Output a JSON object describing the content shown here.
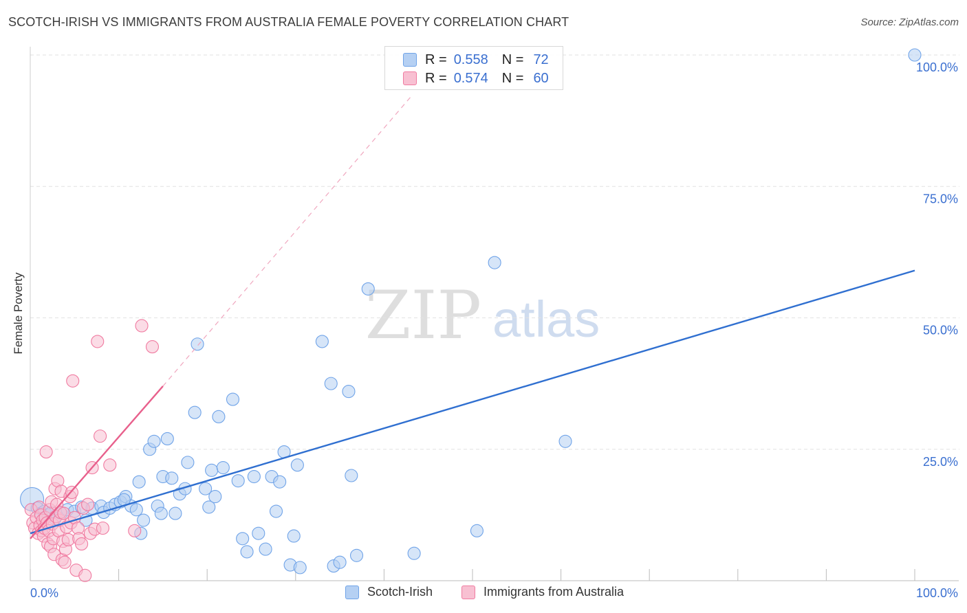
{
  "title": "SCOTCH-IRISH VS IMMIGRANTS FROM AUSTRALIA FEMALE POVERTY CORRELATION CHART",
  "source": "Source: ZipAtlas.com",
  "watermark": {
    "zip": "ZIP",
    "atlas": "atlas"
  },
  "legend": {
    "r_label": "R =",
    "n_label": "N =",
    "series": [
      {
        "name": "Scotch-Irish",
        "r": "0.558",
        "n": "72",
        "color": "#6fa3e8",
        "fill": "#b5d0f3"
      },
      {
        "name": "Immigrants from Australia",
        "r": "0.574",
        "n": "60",
        "color": "#f07aa0",
        "fill": "#f8c0d2"
      }
    ]
  },
  "chart_data": {
    "type": "scatter",
    "title": "SCOTCH-IRISH VS IMMIGRANTS FROM AUSTRALIA FEMALE POVERTY CORRELATION CHART",
    "xlabel": "",
    "ylabel": "Female Poverty",
    "xlim": [
      0,
      100
    ],
    "ylim": [
      0,
      100
    ],
    "x_tick_labels": [
      {
        "value": 0,
        "label": "0.0%"
      },
      {
        "value": 100,
        "label": "100.0%"
      }
    ],
    "y_tick_labels": [
      {
        "value": 25,
        "label": "25.0%"
      },
      {
        "value": 50,
        "label": "50.0%"
      },
      {
        "value": 75,
        "label": "75.0%"
      },
      {
        "value": 100,
        "label": "100.0%"
      }
    ],
    "grid": true,
    "series": [
      {
        "name": "Scotch-Irish",
        "color": "#6fa3e8",
        "line_color": "#2f6fd0",
        "trend": {
          "x": [
            0,
            100
          ],
          "y": [
            9.0,
            59.0
          ],
          "dashed_extension": false
        },
        "points": [
          [
            0.2,
            15.5
          ],
          [
            0.8,
            13.8
          ],
          [
            1.2,
            12.8
          ],
          [
            1.6,
            13.2
          ],
          [
            2.0,
            12.5
          ],
          [
            2.4,
            13.0
          ],
          [
            3.5,
            12.8
          ],
          [
            4.2,
            13.5
          ],
          [
            5.0,
            13.2
          ],
          [
            5.8,
            14.0
          ],
          [
            6.3,
            11.5
          ],
          [
            7.0,
            13.8
          ],
          [
            8.0,
            14.2
          ],
          [
            8.3,
            13.0
          ],
          [
            9.0,
            13.8
          ],
          [
            9.6,
            14.5
          ],
          [
            10.2,
            15.0
          ],
          [
            10.8,
            16.0
          ],
          [
            11.4,
            14.2
          ],
          [
            12.0,
            13.5
          ],
          [
            12.3,
            18.8
          ],
          [
            12.5,
            9.0
          ],
          [
            12.8,
            11.5
          ],
          [
            13.5,
            25.0
          ],
          [
            14.0,
            26.5
          ],
          [
            14.4,
            14.2
          ],
          [
            14.8,
            12.8
          ],
          [
            15.0,
            19.8
          ],
          [
            15.5,
            27.0
          ],
          [
            16.0,
            19.5
          ],
          [
            16.4,
            12.8
          ],
          [
            16.9,
            16.5
          ],
          [
            17.5,
            17.5
          ],
          [
            17.8,
            22.5
          ],
          [
            18.6,
            32.0
          ],
          [
            18.9,
            45.0
          ],
          [
            19.8,
            17.5
          ],
          [
            20.2,
            14.0
          ],
          [
            20.5,
            21.0
          ],
          [
            20.9,
            16.0
          ],
          [
            21.3,
            31.2
          ],
          [
            21.8,
            21.5
          ],
          [
            22.9,
            34.5
          ],
          [
            23.5,
            19.0
          ],
          [
            24.0,
            8.0
          ],
          [
            24.5,
            5.5
          ],
          [
            25.3,
            19.8
          ],
          [
            25.8,
            9.0
          ],
          [
            26.6,
            6.0
          ],
          [
            27.3,
            19.8
          ],
          [
            27.8,
            13.2
          ],
          [
            28.2,
            18.8
          ],
          [
            28.7,
            24.5
          ],
          [
            29.4,
            3.0
          ],
          [
            29.8,
            8.5
          ],
          [
            30.2,
            22.0
          ],
          [
            30.5,
            2.5
          ],
          [
            33.0,
            45.5
          ],
          [
            34.0,
            37.5
          ],
          [
            34.3,
            2.8
          ],
          [
            35.0,
            3.5
          ],
          [
            36.0,
            36.0
          ],
          [
            36.3,
            20.0
          ],
          [
            36.9,
            4.8
          ],
          [
            38.2,
            55.5
          ],
          [
            43.4,
            5.2
          ],
          [
            50.5,
            9.5
          ],
          [
            52.5,
            60.5
          ],
          [
            60.5,
            26.5
          ],
          [
            100,
            100
          ],
          [
            2.8,
            11.8
          ],
          [
            10.6,
            15.4
          ]
        ]
      },
      {
        "name": "Immigrants from Australia",
        "color": "#f07aa0",
        "line_color": "#e8608c",
        "trend": {
          "x": [
            0,
            15
          ],
          "y": [
            8.0,
            37.0
          ],
          "dashed_extension": true,
          "dashed_to": {
            "x": 43,
            "y": 92
          }
        },
        "points": [
          [
            0.1,
            13.5
          ],
          [
            0.3,
            11.0
          ],
          [
            0.5,
            10.0
          ],
          [
            0.7,
            12.0
          ],
          [
            0.9,
            9.0
          ],
          [
            1.0,
            14.0
          ],
          [
            1.1,
            10.5
          ],
          [
            1.2,
            12.5
          ],
          [
            1.3,
            9.5
          ],
          [
            1.4,
            11.5
          ],
          [
            1.5,
            8.5
          ],
          [
            1.6,
            10.0
          ],
          [
            1.7,
            12.0
          ],
          [
            1.8,
            24.5
          ],
          [
            1.9,
            11.0
          ],
          [
            2.0,
            7.0
          ],
          [
            2.1,
            9.5
          ],
          [
            2.2,
            13.5
          ],
          [
            2.3,
            6.5
          ],
          [
            2.4,
            15.0
          ],
          [
            2.5,
            10.8
          ],
          [
            2.6,
            8.0
          ],
          [
            2.7,
            5.0
          ],
          [
            2.8,
            17.5
          ],
          [
            2.9,
            12.2
          ],
          [
            3.0,
            14.5
          ],
          [
            3.1,
            19.0
          ],
          [
            3.2,
            9.5
          ],
          [
            3.3,
            11.5
          ],
          [
            3.4,
            13.0
          ],
          [
            3.5,
            17.0
          ],
          [
            3.6,
            4.0
          ],
          [
            3.7,
            7.5
          ],
          [
            3.8,
            12.8
          ],
          [
            3.9,
            3.5
          ],
          [
            4.0,
            6.0
          ],
          [
            4.1,
            10.2
          ],
          [
            4.3,
            7.8
          ],
          [
            4.5,
            16.0
          ],
          [
            4.6,
            11.0
          ],
          [
            4.7,
            16.8
          ],
          [
            4.8,
            38.0
          ],
          [
            5.0,
            12.0
          ],
          [
            5.2,
            2.0
          ],
          [
            5.4,
            10.0
          ],
          [
            5.5,
            8.0
          ],
          [
            5.8,
            7.0
          ],
          [
            6.0,
            13.8
          ],
          [
            6.2,
            1.0
          ],
          [
            6.5,
            14.5
          ],
          [
            6.8,
            9.0
          ],
          [
            7.0,
            21.5
          ],
          [
            7.3,
            9.8
          ],
          [
            7.6,
            45.5
          ],
          [
            7.9,
            27.5
          ],
          [
            8.2,
            10.0
          ],
          [
            9.0,
            22.0
          ],
          [
            11.8,
            9.5
          ],
          [
            12.6,
            48.5
          ],
          [
            13.8,
            44.5
          ]
        ]
      }
    ]
  }
}
